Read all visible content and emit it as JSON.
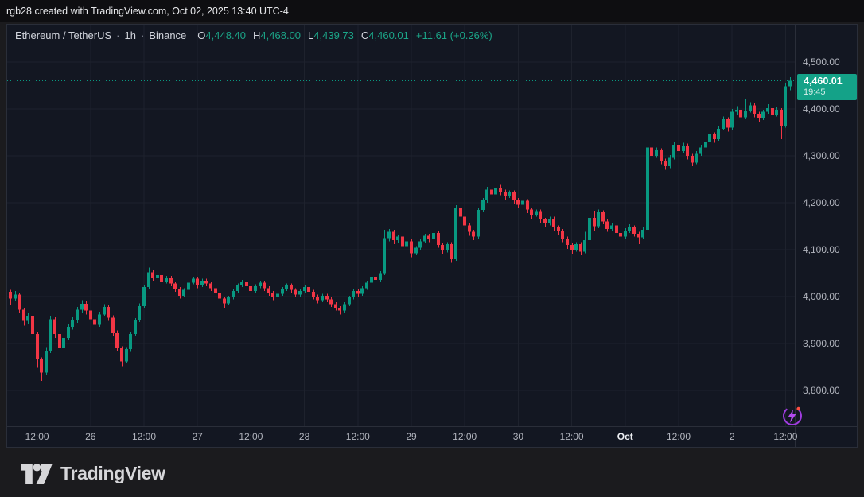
{
  "top_bar": {
    "text": "rgb28 created with TradingView.com, Oct 02, 2025 13:40 UTC-4"
  },
  "header": {
    "symbol": "Ethereum / TetherUS",
    "separator": "·",
    "interval": "1h",
    "exchange": "Binance",
    "ohlc": {
      "o_label": "O",
      "o_value": "4,448.40",
      "h_label": "H",
      "h_value": "4,468.00",
      "l_label": "L",
      "l_value": "4,439.73",
      "c_label": "C",
      "c_value": "4,460.01",
      "change": "+11.61 (+0.26%)"
    }
  },
  "footer": {
    "brand": "TradingView"
  },
  "icons": {
    "flash": "flash-circle-icon",
    "logo_mark": "tradingview-mark-icon"
  },
  "chart_data": {
    "type": "candlestick",
    "title": "Ethereum / TetherUS · 1h · Binance",
    "symbol": "ETHUSDT",
    "exchange": "Binance",
    "interval": "1h",
    "last_price": 4460.01,
    "last_price_display": "4,460.01",
    "countdown": "19:45",
    "grid": true,
    "x_axis": {
      "start": "2025-09-25 04:00",
      "end": "2025-10-02 13:00",
      "interval_hours": 1
    },
    "y_axis": {
      "visible_range": [
        3722,
        4580
      ],
      "tick_step": 100
    },
    "price_axis": {
      "ticks": [
        {
          "value": 4500,
          "label": "4,500.00"
        },
        {
          "value": 4400,
          "label": "4,400.00"
        },
        {
          "value": 4300,
          "label": "4,300.00"
        },
        {
          "value": 4200,
          "label": "4,200.00"
        },
        {
          "value": 4100,
          "label": "4,100.00"
        },
        {
          "value": 4000,
          "label": "4,000.00"
        },
        {
          "value": 3900,
          "label": "3,900.00"
        },
        {
          "value": 3800,
          "label": "3,800.00"
        }
      ]
    },
    "time_axis": {
      "labels": [
        {
          "hour": 8,
          "label": "12:00",
          "bold": false
        },
        {
          "hour": 20,
          "label": "26",
          "bold": false
        },
        {
          "hour": 32,
          "label": "12:00",
          "bold": false
        },
        {
          "hour": 44,
          "label": "27",
          "bold": false
        },
        {
          "hour": 56,
          "label": "12:00",
          "bold": false
        },
        {
          "hour": 68,
          "label": "28",
          "bold": false
        },
        {
          "hour": 80,
          "label": "12:00",
          "bold": false
        },
        {
          "hour": 92,
          "label": "29",
          "bold": false
        },
        {
          "hour": 104,
          "label": "12:00",
          "bold": false
        },
        {
          "hour": 116,
          "label": "30",
          "bold": false
        },
        {
          "hour": 128,
          "label": "12:00",
          "bold": false
        },
        {
          "hour": 140,
          "label": "Oct",
          "bold": true
        },
        {
          "hour": 152,
          "label": "12:00",
          "bold": false
        },
        {
          "hour": 164,
          "label": "2",
          "bold": false
        },
        {
          "hour": 176,
          "label": "12:00",
          "bold": false
        }
      ]
    },
    "colors": {
      "background": "#131722",
      "grid": "#1e222d",
      "up": "#089981",
      "down": "#f23645",
      "label_bg": "#14a288",
      "axis_text": "#b2b5be",
      "accent_purple": "#b44bf0",
      "alert_dot": "#ff4e42"
    },
    "candles": [
      [
        4038,
        4044,
        4012,
        4022
      ],
      [
        4022,
        4028,
        4002,
        4010
      ],
      [
        4010,
        4014,
        3982,
        3996
      ],
      [
        3996,
        4012,
        3990,
        4004
      ],
      [
        4004,
        4008,
        3964,
        3972
      ],
      [
        3972,
        3976,
        3938,
        3948
      ],
      [
        3948,
        3966,
        3942,
        3958
      ],
      [
        3958,
        3962,
        3910,
        3920
      ],
      [
        3920,
        3924,
        3848,
        3866
      ],
      [
        3866,
        3870,
        3820,
        3838
      ],
      [
        3838,
        3892,
        3832,
        3884
      ],
      [
        3884,
        3958,
        3880,
        3952
      ],
      [
        3952,
        3956,
        3912,
        3920
      ],
      [
        3920,
        3926,
        3882,
        3890
      ],
      [
        3890,
        3918,
        3884,
        3912
      ],
      [
        3912,
        3942,
        3908,
        3936
      ],
      [
        3936,
        3956,
        3930,
        3950
      ],
      [
        3950,
        3978,
        3944,
        3972
      ],
      [
        3972,
        3992,
        3966,
        3985
      ],
      [
        3985,
        3990,
        3962,
        3970
      ],
      [
        3970,
        3974,
        3944,
        3952
      ],
      [
        3952,
        3958,
        3932,
        3940
      ],
      [
        3940,
        3968,
        3936,
        3962
      ],
      [
        3962,
        3984,
        3958,
        3978
      ],
      [
        3978,
        3982,
        3948,
        3955
      ],
      [
        3955,
        3960,
        3916,
        3922
      ],
      [
        3922,
        3928,
        3884,
        3890
      ],
      [
        3890,
        3894,
        3852,
        3862
      ],
      [
        3862,
        3892,
        3858,
        3888
      ],
      [
        3888,
        3924,
        3882,
        3920
      ],
      [
        3920,
        3954,
        3916,
        3950
      ],
      [
        3950,
        3986,
        3946,
        3980
      ],
      [
        3980,
        4024,
        3976,
        4020
      ],
      [
        4020,
        4062,
        4016,
        4052
      ],
      [
        4052,
        4056,
        4034,
        4040
      ],
      [
        4040,
        4050,
        4034,
        4046
      ],
      [
        4046,
        4050,
        4026,
        4032
      ],
      [
        4032,
        4044,
        4028,
        4040
      ],
      [
        4040,
        4044,
        4022,
        4028
      ],
      [
        4028,
        4032,
        4010,
        4016
      ],
      [
        4016,
        4020,
        3996,
        4002
      ],
      [
        4002,
        4018,
        3998,
        4014
      ],
      [
        4014,
        4034,
        4010,
        4030
      ],
      [
        4030,
        4042,
        4026,
        4038
      ],
      [
        4038,
        4042,
        4018,
        4024
      ],
      [
        4024,
        4038,
        4020,
        4034
      ],
      [
        4034,
        4038,
        4022,
        4028
      ],
      [
        4028,
        4032,
        4012,
        4018
      ],
      [
        4018,
        4022,
        4002,
        4008
      ],
      [
        4008,
        4012,
        3990,
        3996
      ],
      [
        3996,
        4000,
        3976,
        3986
      ],
      [
        3986,
        4002,
        3982,
        3998
      ],
      [
        3998,
        4016,
        3994,
        4012
      ],
      [
        4012,
        4028,
        4008,
        4024
      ],
      [
        4024,
        4036,
        4020,
        4032
      ],
      [
        4032,
        4036,
        4016,
        4022
      ],
      [
        4022,
        4026,
        4006,
        4012
      ],
      [
        4012,
        4026,
        4008,
        4022
      ],
      [
        4022,
        4034,
        4018,
        4030
      ],
      [
        4030,
        4034,
        4012,
        4018
      ],
      [
        4018,
        4022,
        4002,
        4008
      ],
      [
        4008,
        4012,
        3992,
        3998
      ],
      [
        3998,
        4010,
        3994,
        4006
      ],
      [
        4006,
        4020,
        4002,
        4016
      ],
      [
        4016,
        4028,
        4012,
        4024
      ],
      [
        4024,
        4028,
        4008,
        4014
      ],
      [
        4014,
        4018,
        3998,
        4004
      ],
      [
        4004,
        4016,
        4000,
        4012
      ],
      [
        4012,
        4024,
        4008,
        4020
      ],
      [
        4020,
        4024,
        4004,
        4010
      ],
      [
        4010,
        4014,
        3994,
        4000
      ],
      [
        4000,
        4004,
        3986,
        3992
      ],
      [
        3992,
        4006,
        3988,
        4002
      ],
      [
        4002,
        4006,
        3988,
        3994
      ],
      [
        3994,
        3998,
        3978,
        3984
      ],
      [
        3984,
        3988,
        3970,
        3976
      ],
      [
        3976,
        3980,
        3962,
        3970
      ],
      [
        3970,
        3988,
        3966,
        3984
      ],
      [
        3984,
        4002,
        3980,
        3998
      ],
      [
        3998,
        4016,
        3994,
        4012
      ],
      [
        4012,
        4016,
        4000,
        4006
      ],
      [
        4006,
        4022,
        4002,
        4018
      ],
      [
        4018,
        4034,
        4014,
        4030
      ],
      [
        4030,
        4046,
        4026,
        4042
      ],
      [
        4042,
        4046,
        4030,
        4036
      ],
      [
        4036,
        4054,
        4032,
        4050
      ],
      [
        4050,
        4142,
        4046,
        4125
      ],
      [
        4125,
        4144,
        4118,
        4138
      ],
      [
        4138,
        4142,
        4112,
        4120
      ],
      [
        4120,
        4132,
        4114,
        4128
      ],
      [
        4128,
        4132,
        4100,
        4108
      ],
      [
        4108,
        4122,
        4102,
        4118
      ],
      [
        4118,
        4122,
        4084,
        4092
      ],
      [
        4092,
        4108,
        4088,
        4104
      ],
      [
        4104,
        4122,
        4100,
        4118
      ],
      [
        4118,
        4134,
        4114,
        4130
      ],
      [
        4130,
        4134,
        4116,
        4122
      ],
      [
        4122,
        4140,
        4118,
        4136
      ],
      [
        4136,
        4140,
        4104,
        4110
      ],
      [
        4110,
        4114,
        4090,
        4098
      ],
      [
        4098,
        4116,
        4094,
        4112
      ],
      [
        4112,
        4116,
        4072,
        4080
      ],
      [
        4080,
        4195,
        4076,
        4188
      ],
      [
        4188,
        4192,
        4164,
        4170
      ],
      [
        4170,
        4174,
        4146,
        4152
      ],
      [
        4152,
        4156,
        4130,
        4138
      ],
      [
        4138,
        4142,
        4120,
        4128
      ],
      [
        4128,
        4190,
        4124,
        4185
      ],
      [
        4185,
        4210,
        4180,
        4205
      ],
      [
        4205,
        4234,
        4200,
        4228
      ],
      [
        4228,
        4232,
        4210,
        4218
      ],
      [
        4218,
        4246,
        4214,
        4232
      ],
      [
        4232,
        4238,
        4216,
        4224
      ],
      [
        4224,
        4228,
        4206,
        4214
      ],
      [
        4214,
        4226,
        4210,
        4222
      ],
      [
        4222,
        4226,
        4198,
        4206
      ],
      [
        4206,
        4210,
        4188,
        4196
      ],
      [
        4196,
        4208,
        4192,
        4204
      ],
      [
        4204,
        4208,
        4178,
        4186
      ],
      [
        4186,
        4190,
        4166,
        4174
      ],
      [
        4174,
        4186,
        4170,
        4182
      ],
      [
        4182,
        4186,
        4156,
        4164
      ],
      [
        4164,
        4168,
        4148,
        4156
      ],
      [
        4156,
        4170,
        4152,
        4166
      ],
      [
        4166,
        4170,
        4140,
        4148
      ],
      [
        4148,
        4152,
        4132,
        4140
      ],
      [
        4140,
        4144,
        4116,
        4124
      ],
      [
        4124,
        4128,
        4102,
        4110
      ],
      [
        4110,
        4114,
        4090,
        4100
      ],
      [
        4100,
        4116,
        4096,
        4112
      ],
      [
        4112,
        4116,
        4088,
        4096
      ],
      [
        4096,
        4138,
        4092,
        4120
      ],
      [
        4120,
        4204,
        4116,
        4168
      ],
      [
        4168,
        4183,
        4141,
        4150
      ],
      [
        4150,
        4186,
        4146,
        4180
      ],
      [
        4180,
        4184,
        4154,
        4160
      ],
      [
        4160,
        4164,
        4138,
        4144
      ],
      [
        4144,
        4158,
        4140,
        4152
      ],
      [
        4152,
        4156,
        4130,
        4136
      ],
      [
        4136,
        4140,
        4118,
        4128
      ],
      [
        4128,
        4146,
        4124,
        4140
      ],
      [
        4140,
        4154,
        4136,
        4148
      ],
      [
        4148,
        4152,
        4128,
        4134
      ],
      [
        4134,
        4138,
        4112,
        4126
      ],
      [
        4126,
        4148,
        4122,
        4142
      ],
      [
        4142,
        4336,
        4138,
        4318
      ],
      [
        4318,
        4324,
        4292,
        4300
      ],
      [
        4300,
        4318,
        4296,
        4312
      ],
      [
        4312,
        4316,
        4282,
        4290
      ],
      [
        4290,
        4294,
        4270,
        4278
      ],
      [
        4278,
        4302,
        4274,
        4296
      ],
      [
        4296,
        4330,
        4292,
        4324
      ],
      [
        4324,
        4328,
        4302,
        4310
      ],
      [
        4310,
        4328,
        4306,
        4322
      ],
      [
        4322,
        4326,
        4292,
        4300
      ],
      [
        4300,
        4304,
        4278,
        4286
      ],
      [
        4286,
        4310,
        4282,
        4304
      ],
      [
        4304,
        4324,
        4300,
        4318
      ],
      [
        4318,
        4336,
        4314,
        4330
      ],
      [
        4330,
        4352,
        4326,
        4346
      ],
      [
        4346,
        4350,
        4328,
        4336
      ],
      [
        4336,
        4364,
        4332,
        4358
      ],
      [
        4358,
        4384,
        4354,
        4378
      ],
      [
        4378,
        4382,
        4352,
        4360
      ],
      [
        4360,
        4400,
        4356,
        4394
      ],
      [
        4394,
        4406,
        4388,
        4398
      ],
      [
        4398,
        4402,
        4374,
        4382
      ],
      [
        4382,
        4420,
        4378,
        4396
      ],
      [
        4396,
        4414,
        4392,
        4408
      ],
      [
        4408,
        4412,
        4382,
        4390
      ],
      [
        4390,
        4394,
        4372,
        4380
      ],
      [
        4380,
        4398,
        4376,
        4394
      ],
      [
        4394,
        4410,
        4390,
        4402
      ],
      [
        4402,
        4406,
        4380,
        4388
      ],
      [
        4388,
        4404,
        4384,
        4398
      ],
      [
        4398,
        4402,
        4336,
        4364
      ],
      [
        4364,
        4455,
        4360,
        4448
      ],
      [
        4448.4,
        4468,
        4439.73,
        4460.01
      ]
    ]
  }
}
